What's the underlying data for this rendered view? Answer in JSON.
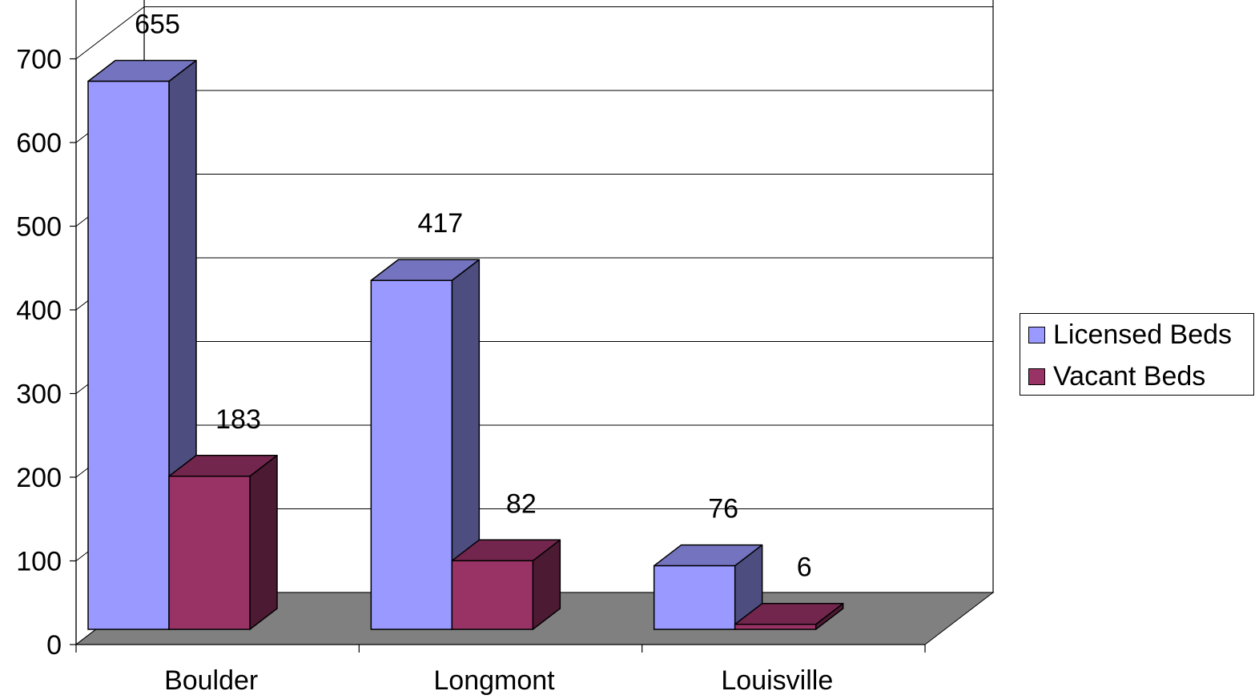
{
  "chart_data": {
    "type": "bar",
    "title": "",
    "xlabel": "",
    "ylabel": "",
    "categories": [
      "Boulder",
      "Longmont",
      "Louisville"
    ],
    "series": [
      {
        "name": "Licensed Beds",
        "values": [
          655,
          417,
          76
        ],
        "color": "#9999FF",
        "side_color": "#4D4D80",
        "top_color": "#7373BF"
      },
      {
        "name": "Vacant Beds",
        "values": [
          183,
          82,
          6
        ],
        "color": "#993366",
        "side_color": "#4D1A33",
        "top_color": "#73264D"
      }
    ],
    "y_ticks": [
      0,
      100,
      200,
      300,
      400,
      500,
      600,
      700
    ],
    "ylim": [
      0,
      700
    ],
    "grid": true,
    "three_d": true,
    "floor_color": "#808080",
    "legend_position": "right"
  }
}
